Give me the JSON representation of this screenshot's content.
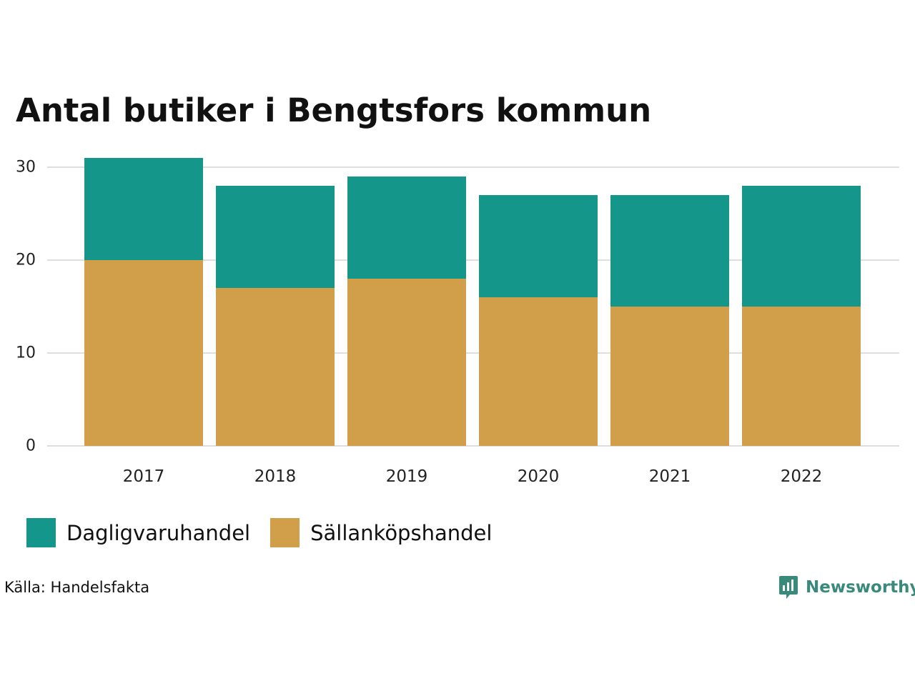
{
  "title": "Antal butiker i Bengtsfors kommun",
  "source": "Källa: Handelsfakta",
  "brand": "Newsworthy",
  "colors": {
    "dagligvaruhandel": "#15968a",
    "sallankopshandel": "#d19f49",
    "grid": "#dedede",
    "brand": "#3a8a7c"
  },
  "chart_data": {
    "type": "bar",
    "stacked": true,
    "title": "Antal butiker i Bengtsfors kommun",
    "xlabel": "",
    "ylabel": "",
    "categories": [
      "2017",
      "2018",
      "2019",
      "2020",
      "2021",
      "2022"
    ],
    "ylim": [
      0,
      31
    ],
    "yticks": [
      0,
      10,
      20,
      30
    ],
    "grid": true,
    "legend": "bottom-left",
    "series": [
      {
        "name": "Sällanköpshandel",
        "color": "#d19f49",
        "values": [
          20,
          17,
          18,
          16,
          15,
          15
        ]
      },
      {
        "name": "Dagligvaruhandel",
        "color": "#15968a",
        "values": [
          11,
          11,
          11,
          11,
          12,
          13
        ]
      }
    ]
  },
  "legend": [
    {
      "label": "Dagligvaruhandel",
      "color": "#15968a"
    },
    {
      "label": "Sällanköpshandel",
      "color": "#d19f49"
    }
  ]
}
